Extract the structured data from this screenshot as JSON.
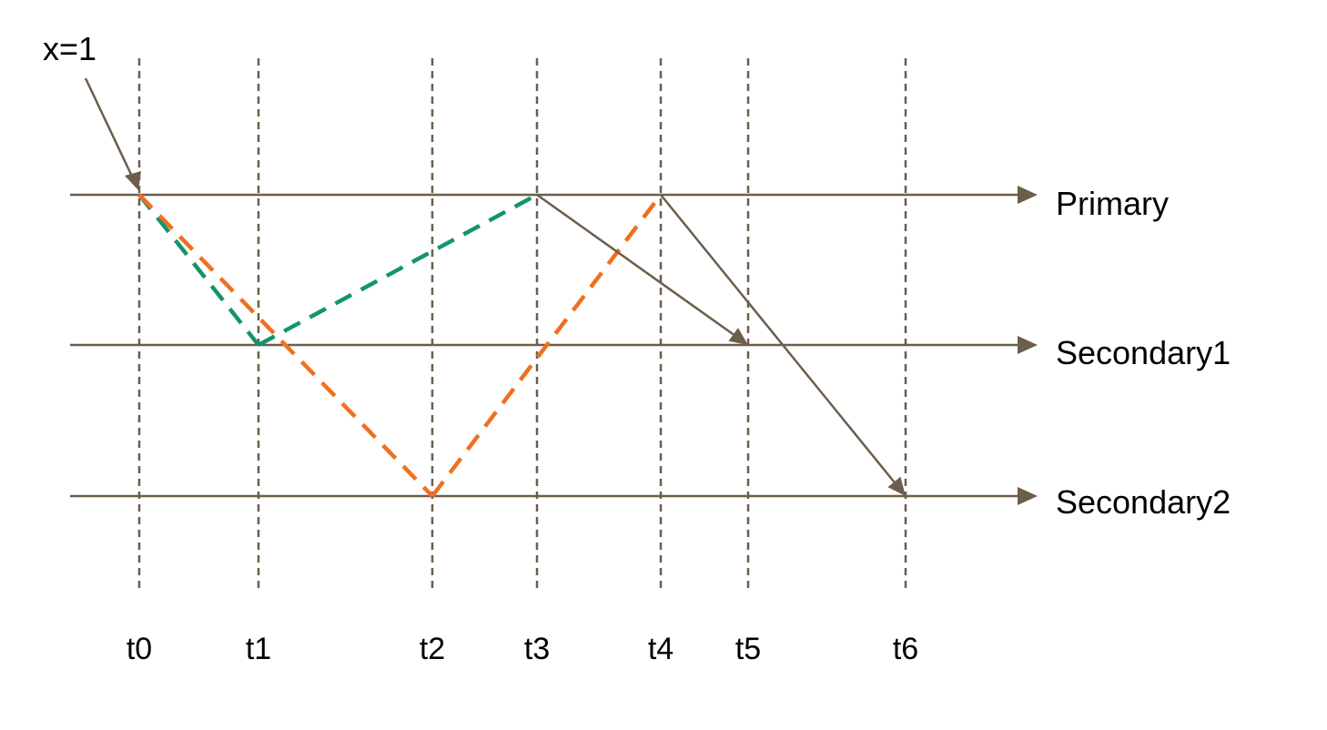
{
  "diagram": {
    "write_label": "x=1",
    "timeline_labels": [
      "Primary",
      "Secondary1",
      "Secondary2"
    ],
    "time_labels": [
      "t0",
      "t1",
      "t2",
      "t3",
      "t4",
      "t5",
      "t6"
    ],
    "colors": {
      "axis": "#6b5e4a",
      "green_path": "#14946b",
      "orange_path": "#f07020",
      "text": "#000000"
    },
    "messages": [
      {
        "from": "Primary",
        "at": "t0",
        "to": "Secondary1",
        "at_arrival": "t1",
        "style": "dashed",
        "color": "green_path"
      },
      {
        "from": "Secondary1",
        "at": "t1",
        "to": "Primary",
        "at_arrival": "t3",
        "style": "dashed",
        "color": "green_path"
      },
      {
        "from": "Primary",
        "at": "t0",
        "to": "Secondary2",
        "at_arrival": "t2",
        "style": "dashed",
        "color": "orange_path"
      },
      {
        "from": "Secondary2",
        "at": "t2",
        "to": "Primary",
        "at_arrival": "t4",
        "style": "dashed",
        "color": "orange_path"
      },
      {
        "from": "Primary",
        "at": "t3",
        "to": "Secondary1",
        "at_arrival": "t5",
        "style": "solid",
        "color": "axis"
      },
      {
        "from": "Primary",
        "at": "t4",
        "to": "Secondary2",
        "at_arrival": "t6",
        "style": "solid",
        "color": "axis"
      }
    ]
  }
}
